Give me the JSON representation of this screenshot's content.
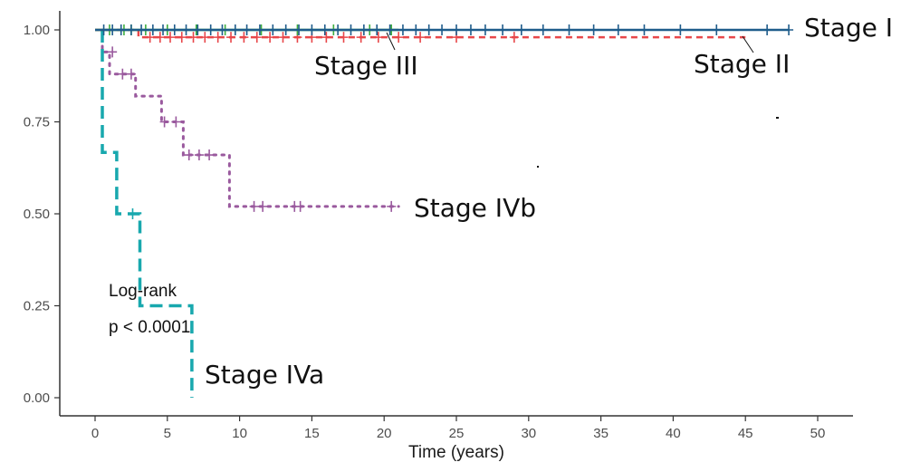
{
  "chart_data": {
    "type": "line",
    "title": "",
    "xlabel": "Time (years)",
    "ylabel": "",
    "xlim": [
      -2,
      52
    ],
    "ylim": [
      -0.05,
      1.05
    ],
    "x_ticks": [
      0,
      5,
      10,
      15,
      20,
      25,
      30,
      35,
      40,
      45,
      50
    ],
    "x_tick_labels": [
      "0",
      "5",
      "10",
      "15",
      "20",
      "25",
      "30",
      "35",
      "40",
      "45",
      "50"
    ],
    "y_ticks": [
      0,
      0.25,
      0.5,
      0.75,
      1.0
    ],
    "y_tick_labels": [
      "0.00",
      "0.25",
      "0.50",
      "0.75",
      "1.00"
    ],
    "grid": false,
    "annotation": {
      "line1": "Log-rank",
      "line2": "p < 0.0001"
    },
    "series": [
      {
        "name": "Stage I",
        "color": "#1f5c8b",
        "dash": "solid",
        "steps": [
          [
            0,
            1.0
          ],
          [
            48,
            1.0
          ]
        ],
        "censors": [
          [
            0.6,
            1
          ],
          [
            1.2,
            1
          ],
          [
            1.8,
            1
          ],
          [
            2.5,
            1
          ],
          [
            3.2,
            1
          ],
          [
            4.0,
            1
          ],
          [
            4.7,
            1
          ],
          [
            5.5,
            1
          ],
          [
            6.3,
            1
          ],
          [
            7.1,
            1
          ],
          [
            8.0,
            1
          ],
          [
            8.8,
            1
          ],
          [
            9.7,
            1
          ],
          [
            10.5,
            1
          ],
          [
            11.4,
            1
          ],
          [
            12.3,
            1
          ],
          [
            13.2,
            1
          ],
          [
            14.1,
            1
          ],
          [
            15.0,
            1
          ],
          [
            15.9,
            1
          ],
          [
            16.8,
            1
          ],
          [
            17.7,
            1
          ],
          [
            18.6,
            1
          ],
          [
            19.5,
            1
          ],
          [
            20.4,
            1
          ],
          [
            21.3,
            1
          ],
          [
            22.2,
            1
          ],
          [
            23.1,
            1
          ],
          [
            24.0,
            1
          ],
          [
            25.0,
            1
          ],
          [
            26.0,
            1
          ],
          [
            27.0,
            1
          ],
          [
            28.2,
            1
          ],
          [
            29.5,
            1
          ],
          [
            31.0,
            1
          ],
          [
            32.8,
            1
          ],
          [
            34.5,
            1
          ],
          [
            36.2,
            1
          ],
          [
            38.0,
            1
          ],
          [
            40.5,
            1
          ],
          [
            43.0,
            1
          ],
          [
            46.5,
            1
          ],
          [
            48,
            1
          ]
        ]
      },
      {
        "name": "Stage II",
        "color": "#e8474a",
        "dash": "dashed",
        "steps": [
          [
            0,
            1.0
          ],
          [
            3,
            1.0
          ],
          [
            3,
            0.98
          ],
          [
            45,
            0.98
          ]
        ],
        "censors": [
          [
            3.8,
            0.98
          ],
          [
            4.5,
            0.98
          ],
          [
            5.2,
            0.98
          ],
          [
            6.0,
            0.98
          ],
          [
            6.8,
            0.98
          ],
          [
            7.6,
            0.98
          ],
          [
            8.5,
            0.98
          ],
          [
            9.4,
            0.98
          ],
          [
            10.3,
            0.98
          ],
          [
            11.2,
            0.98
          ],
          [
            12.1,
            0.98
          ],
          [
            13.0,
            0.98
          ],
          [
            14.0,
            0.98
          ],
          [
            15.0,
            0.98
          ],
          [
            16.0,
            0.98
          ],
          [
            17.2,
            0.98
          ],
          [
            18.4,
            0.98
          ],
          [
            19.6,
            0.98
          ],
          [
            21.0,
            0.98
          ],
          [
            22.5,
            0.98
          ],
          [
            25.0,
            0.98
          ],
          [
            29.0,
            0.98
          ]
        ]
      },
      {
        "name": "Stage III",
        "color": "#3fae3f",
        "dash": "solid",
        "steps": [
          [
            0,
            1.0
          ],
          [
            21,
            1.0
          ]
        ],
        "censors": [
          [
            1.0,
            1
          ],
          [
            2.0,
            1
          ],
          [
            2.5,
            1
          ],
          [
            3.5,
            1
          ],
          [
            5.0,
            1
          ],
          [
            7.0,
            1
          ],
          [
            9.0,
            1
          ],
          [
            11.5,
            1
          ],
          [
            14.0,
            1
          ],
          [
            16.5,
            1
          ],
          [
            19.0,
            1
          ],
          [
            20.5,
            1
          ]
        ]
      },
      {
        "name": "Stage IVa",
        "color": "#18a8ae",
        "dash": "dashed",
        "steps": [
          [
            0.5,
            1.0
          ],
          [
            0.5,
            0.667
          ],
          [
            1.5,
            0.667
          ],
          [
            1.5,
            0.5
          ],
          [
            3.1,
            0.5
          ],
          [
            3.1,
            0.25
          ],
          [
            6.7,
            0.25
          ],
          [
            6.7,
            0.0
          ]
        ],
        "censors": [
          [
            2.6,
            0.5
          ]
        ]
      },
      {
        "name": "Stage IVb",
        "color": "#9a5a9e",
        "dash": "dotted",
        "steps": [
          [
            0.5,
            1.0
          ],
          [
            0.5,
            0.94
          ],
          [
            1.0,
            0.94
          ],
          [
            1.0,
            0.88
          ],
          [
            2.8,
            0.88
          ],
          [
            2.8,
            0.82
          ],
          [
            4.6,
            0.82
          ],
          [
            4.6,
            0.75
          ],
          [
            6.1,
            0.75
          ],
          [
            6.1,
            0.66
          ],
          [
            9.3,
            0.66
          ],
          [
            9.3,
            0.52
          ],
          [
            21.0,
            0.52
          ]
        ],
        "censors": [
          [
            1.2,
            0.94
          ],
          [
            1.9,
            0.88
          ],
          [
            2.5,
            0.88
          ],
          [
            4.8,
            0.75
          ],
          [
            5.6,
            0.75
          ],
          [
            6.5,
            0.66
          ],
          [
            7.2,
            0.66
          ],
          [
            7.9,
            0.66
          ],
          [
            11.0,
            0.52
          ],
          [
            11.6,
            0.52
          ],
          [
            13.8,
            0.52
          ],
          [
            14.2,
            0.52
          ],
          [
            20.5,
            0.52
          ]
        ]
      }
    ]
  }
}
